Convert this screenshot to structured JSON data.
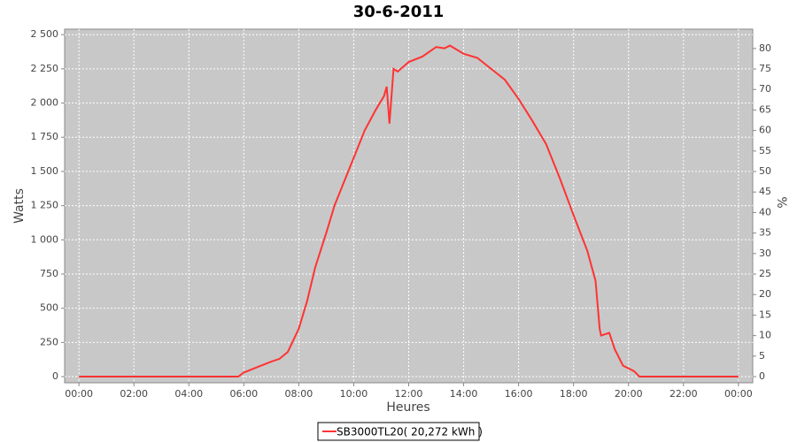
{
  "chart_data": {
    "type": "line",
    "title": "30-6-2011",
    "x_label": "Heures",
    "y_label": "Watts",
    "y2_label": "%",
    "x": [
      0,
      5.8,
      6.0,
      6.5,
      7.0,
      7.3,
      7.6,
      8.0,
      8.3,
      8.6,
      9.0,
      9.3,
      9.6,
      10.0,
      10.4,
      10.8,
      11.1,
      11.2,
      11.3,
      11.45,
      11.6,
      12.0,
      12.5,
      13.0,
      13.3,
      13.5,
      14.0,
      14.5,
      15.0,
      15.5,
      16.0,
      16.5,
      17.0,
      17.5,
      18.0,
      18.5,
      18.8,
      18.95,
      19.0,
      19.3,
      19.5,
      19.8,
      20.2,
      20.4,
      24
    ],
    "series": [
      {
        "name": "SB3000TL20( 20,272 kWh )",
        "color": "#ff3333",
        "values": [
          0,
          0,
          30,
          70,
          110,
          130,
          180,
          350,
          550,
          800,
          1050,
          1250,
          1400,
          1600,
          1800,
          1950,
          2050,
          2120,
          1850,
          2250,
          2230,
          2300,
          2340,
          2410,
          2400,
          2420,
          2360,
          2330,
          2250,
          2170,
          2030,
          1870,
          1700,
          1450,
          1180,
          920,
          700,
          350,
          300,
          320,
          200,
          80,
          40,
          0,
          0
        ]
      }
    ],
    "xlim": [
      -0.52,
      24.52
    ],
    "xticks": [
      {
        "value": 0,
        "label": "00:00"
      },
      {
        "value": 2,
        "label": "02:00"
      },
      {
        "value": 4,
        "label": "04:00"
      },
      {
        "value": 6,
        "label": "06:00"
      },
      {
        "value": 8,
        "label": "08:00"
      },
      {
        "value": 10,
        "label": "10:00"
      },
      {
        "value": 12,
        "label": "12:00"
      },
      {
        "value": 14,
        "label": "14:00"
      },
      {
        "value": 16,
        "label": "16:00"
      },
      {
        "value": 18,
        "label": "18:00"
      },
      {
        "value": 20,
        "label": "20:00"
      },
      {
        "value": 22,
        "label": "22:00"
      },
      {
        "value": 24,
        "label": "00:00"
      }
    ],
    "ylim": [
      -45,
      2540
    ],
    "yticks": [
      0,
      250,
      500,
      750,
      {
        "value": 1000,
        "label": "1 000"
      },
      {
        "value": 1250,
        "label": "1 250"
      },
      {
        "value": 1500,
        "label": "1 500"
      },
      {
        "value": 1750,
        "label": "1 750"
      },
      {
        "value": 2000,
        "label": "2 000"
      },
      {
        "value": 2250,
        "label": "2 250"
      },
      {
        "value": 2500,
        "label": "2 500"
      }
    ],
    "y2lim": [
      -1.5,
      84.7
    ],
    "y2ticks": [
      0,
      5,
      10,
      15,
      20,
      25,
      30,
      35,
      40,
      45,
      50,
      55,
      60,
      65,
      70,
      75,
      80
    ],
    "grid": true,
    "legend": "bottom"
  }
}
